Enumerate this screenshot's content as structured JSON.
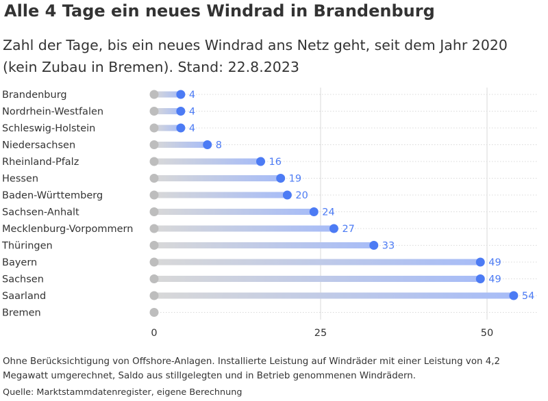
{
  "header": {
    "title": "Alle 4 Tage ein neues Windrad in Brandenburg",
    "subtitle": "Zahl der Tage, bis ein neues Windrad ans Netz geht, seit dem Jahr 2020 (kein Zubau in Bremen). Stand: 22.8.2023"
  },
  "footer": {
    "note": "Ohne Berücksichtigung von Offshore-Anlagen. Installierte Leistung auf Windräder mit einer Leistung von 4,2 Megawatt umgerechnet, Saldo aus stillgelegten und in Betrieb genommenen Windrädern.",
    "source": "Quelle: Marktstammdatenregister, eigene Berechnung"
  },
  "colors": {
    "dot": "#4c7bf4",
    "value_text": "#4c7bf4",
    "start_dot": "#bdbdbd",
    "gradient_start": "#d8d8d8",
    "gradient_end": "#a7bcf7",
    "grid": "#d9d9d9"
  },
  "chart_data": {
    "type": "bar",
    "style": "lollipop",
    "orientation": "horizontal",
    "categories": [
      "Brandenburg",
      "Nordrhein-Westfalen",
      "Schleswig-Holstein",
      "Niedersachsen",
      "Rheinland-Pfalz",
      "Hessen",
      "Baden-Württemberg",
      "Sachsen-Anhalt",
      "Mecklenburg-Vorpommern",
      "Thüringen",
      "Bayern",
      "Sachsen",
      "Saarland",
      "Bremen"
    ],
    "values": [
      4,
      4,
      4,
      8,
      16,
      19,
      20,
      24,
      27,
      33,
      49,
      49,
      54,
      null
    ],
    "value_labels": [
      "4",
      "4",
      "4",
      "8",
      "16",
      "19",
      "20",
      "24",
      "27",
      "33",
      "49",
      "49",
      "54",
      ""
    ],
    "x_ticks": [
      0,
      25,
      50
    ],
    "x_tick_labels": [
      "0",
      "25",
      "50"
    ],
    "xlim": [
      0,
      57
    ],
    "grid": true
  }
}
